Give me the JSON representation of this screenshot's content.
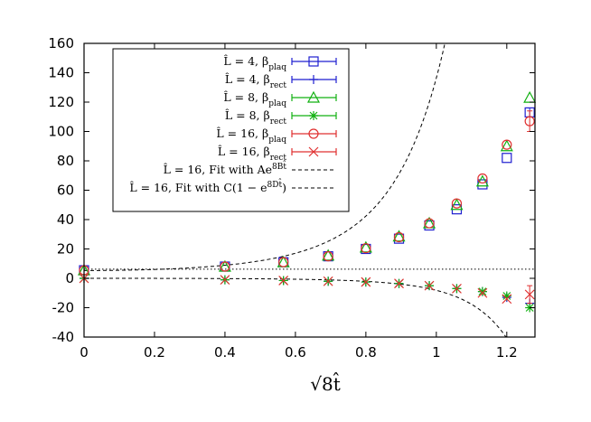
{
  "chart_data": {
    "type": "scatter",
    "xlabel": "√8t̂",
    "xlim": [
      0,
      1.28
    ],
    "ylim": [
      -40,
      160
    ],
    "x_ticks": [
      "0",
      "0.2",
      "0.4",
      "0.6",
      "0.8",
      "1",
      "1.2"
    ],
    "y_ticks": [
      "160",
      "140",
      "120",
      "100",
      "80",
      "60",
      "40",
      "20",
      "0",
      "-20",
      "-40"
    ],
    "series": [
      {
        "name": "L̂ = 4, β_plaq",
        "label_main": "L̂ = 4,  β",
        "label_sub": "plaq",
        "color": "#1f1fd0",
        "marker": "square",
        "x": [
          0,
          0.4,
          0.566,
          0.693,
          0.8,
          0.894,
          0.98,
          1.058,
          1.131,
          1.2,
          1.265
        ],
        "y": [
          5.5,
          8,
          11,
          15,
          20,
          27,
          36,
          47,
          64,
          82,
          113
        ],
        "err": [
          0,
          0,
          0,
          0,
          0,
          0,
          0,
          0,
          0,
          0,
          3
        ]
      },
      {
        "name": "L̂ = 4, β_rect",
        "label_main": "L̂ = 4,  β",
        "label_sub": "rect",
        "color": "#1f1fd0",
        "marker": "plus",
        "x": [
          0,
          0.4,
          0.566,
          0.693,
          0.8,
          0.894,
          0.98,
          1.058,
          1.131,
          1.2,
          1.265
        ],
        "y": [
          0,
          -1,
          -1.5,
          -2,
          -2.5,
          -3.5,
          -5,
          -7,
          -9,
          -13,
          -17
        ],
        "err": [
          0,
          0,
          0,
          0,
          0,
          0,
          0,
          0,
          0,
          0,
          0
        ]
      },
      {
        "name": "L̂ = 8, β_plaq",
        "label_main": "L̂ = 8,  β",
        "label_sub": "plaq",
        "color": "#10b010",
        "marker": "triangle",
        "x": [
          0,
          0.4,
          0.566,
          0.693,
          0.8,
          0.894,
          0.98,
          1.058,
          1.131,
          1.2,
          1.265
        ],
        "y": [
          5.5,
          8,
          11,
          15.5,
          21,
          28.5,
          37.5,
          50,
          66,
          90,
          123
        ],
        "err": [
          0,
          0,
          0,
          0,
          0,
          0,
          0,
          0,
          0,
          0,
          0
        ]
      },
      {
        "name": "L̂ = 8, β_rect",
        "label_main": "L̂ = 8,  β",
        "label_sub": "rect",
        "color": "#10b010",
        "marker": "star",
        "x": [
          0,
          0.4,
          0.566,
          0.693,
          0.8,
          0.894,
          0.98,
          1.058,
          1.131,
          1.2,
          1.265
        ],
        "y": [
          0,
          -1,
          -1.5,
          -2,
          -2.5,
          -3.5,
          -5,
          -7,
          -9,
          -12,
          -20
        ],
        "err": [
          0,
          0,
          0,
          0,
          0,
          0,
          0,
          0,
          0,
          0,
          0
        ]
      },
      {
        "name": "L̂ = 16, β_plaq",
        "label_main": "L̂ = 16,  β",
        "label_sub": "plaq",
        "color": "#e03030",
        "marker": "circle",
        "x": [
          0,
          0.4,
          0.566,
          0.693,
          0.8,
          0.894,
          0.98,
          1.058,
          1.131,
          1.2,
          1.265
        ],
        "y": [
          5.5,
          8,
          11,
          15,
          20.5,
          28,
          37.5,
          51,
          68,
          91,
          107
        ],
        "err": [
          0,
          0,
          0,
          0,
          0,
          0,
          0,
          0,
          0,
          0,
          7
        ]
      },
      {
        "name": "L̂ = 16, β_rect",
        "label_main": "L̂ = 16,  β",
        "label_sub": "rect",
        "color": "#e03030",
        "marker": "x",
        "x": [
          0,
          0.4,
          0.566,
          0.693,
          0.8,
          0.894,
          0.98,
          1.058,
          1.131,
          1.2,
          1.265
        ],
        "y": [
          0,
          -1,
          -1.5,
          -2,
          -2.5,
          -3.5,
          -5,
          -7,
          -10,
          -14,
          -11
        ],
        "err": [
          0,
          0,
          0,
          0,
          0,
          0,
          0,
          0,
          0,
          0,
          6
        ]
      }
    ],
    "fits": [
      {
        "name": "L̂ = 16, Fit with Ae^{8Bt̂}",
        "label_main": "L̂ = 16,  Fit with Ae",
        "label_sup": "8Bt̂",
        "label_end": "",
        "A": 5.3,
        "B": 0.406
      },
      {
        "name": "L̂ = 16, Fit with C(1 − e^{8Dt̂})",
        "label_main": "L̂ = 16,  Fit with C(1 − e",
        "label_sup": "8Dt̂",
        "label_end": ")",
        "C": 0.23,
        "D": 0.45
      }
    ],
    "reference_line_y": 6.2
  }
}
